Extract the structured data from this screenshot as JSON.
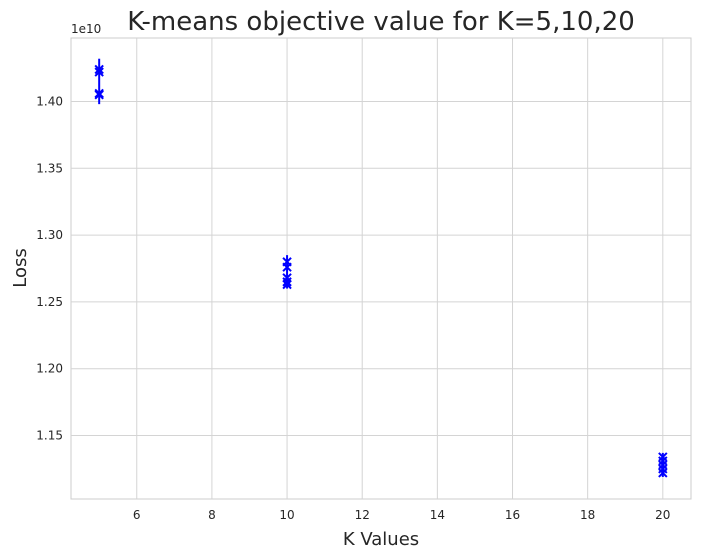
{
  "chart_data": {
    "type": "scatter",
    "title": "K-means objective value for K=5,10,20",
    "xlabel": "K Values",
    "ylabel": "Loss",
    "y_offset_label": "1e10",
    "xlim": [
      4.25,
      20.75
    ],
    "ylim": [
      1.1025,
      1.4475
    ],
    "y_scale_factor": 10000000000,
    "x_ticks": [
      6,
      8,
      10,
      12,
      14,
      16,
      18,
      20
    ],
    "x_tick_labels": [
      "6",
      "8",
      "10",
      "12",
      "14",
      "16",
      "18",
      "20"
    ],
    "y_ticks": [
      1.15,
      1.2,
      1.25,
      1.3,
      1.35,
      1.4
    ],
    "y_tick_labels": [
      "1.15",
      "1.20",
      "1.25",
      "1.30",
      "1.35",
      "1.40"
    ],
    "grid": true,
    "marker": "x",
    "color": "#0000ff",
    "points": [
      {
        "x": 5,
        "y": 1.424
      },
      {
        "x": 5,
        "y": 1.422
      },
      {
        "x": 5,
        "y": 1.406
      },
      {
        "x": 5,
        "y": 1.405
      },
      {
        "x": 10,
        "y": 1.28
      },
      {
        "x": 10,
        "y": 1.276
      },
      {
        "x": 10,
        "y": 1.268
      },
      {
        "x": 10,
        "y": 1.265
      },
      {
        "x": 10,
        "y": 1.263
      },
      {
        "x": 20,
        "y": 1.134
      },
      {
        "x": 20,
        "y": 1.131
      },
      {
        "x": 20,
        "y": 1.128
      },
      {
        "x": 20,
        "y": 1.125
      },
      {
        "x": 20,
        "y": 1.122
      }
    ],
    "stems": [
      {
        "x": 5,
        "y_min": 1.398,
        "y_max": 1.432
      },
      {
        "x": 10,
        "y_min": 1.26,
        "y_max": 1.285
      },
      {
        "x": 20,
        "y_min": 1.119,
        "y_max": 1.137
      }
    ]
  }
}
